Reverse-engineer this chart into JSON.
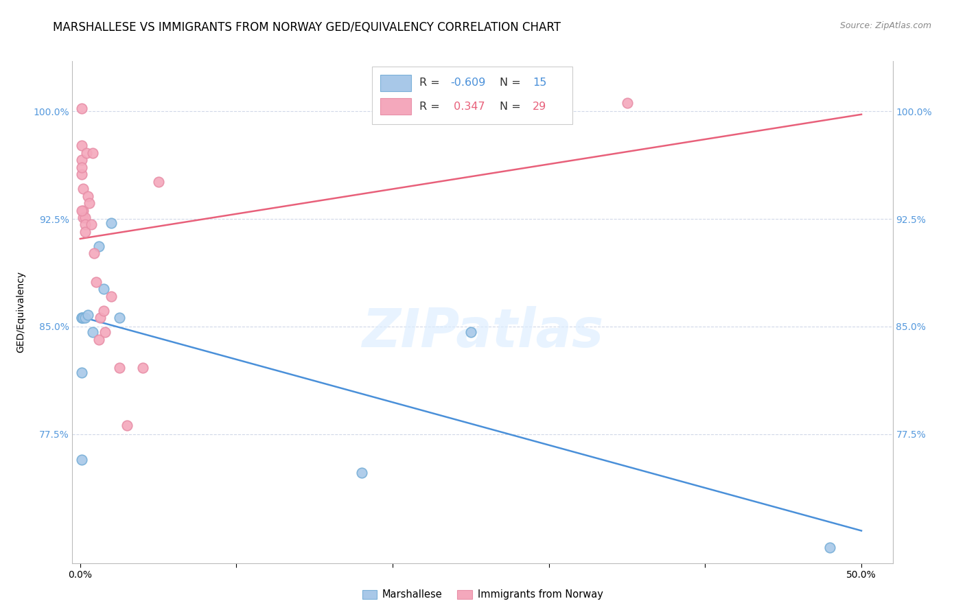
{
  "title": "MARSHALLESE VS IMMIGRANTS FROM NORWAY GED/EQUIVALENCY CORRELATION CHART",
  "source": "Source: ZipAtlas.com",
  "ylabel": "GED/Equivalency",
  "watermark": "ZIPatlas",
  "blue_label": "Marshallese",
  "pink_label": "Immigrants from Norway",
  "blue_R": -0.609,
  "blue_N": 15,
  "pink_R": 0.347,
  "pink_N": 29,
  "blue_color": "#a8c8e8",
  "pink_color": "#f4a8bc",
  "blue_line_color": "#4a90d9",
  "pink_line_color": "#e8607a",
  "blue_edge_color": "#7ab0d8",
  "pink_edge_color": "#e890a8",
  "xlim": [
    -0.005,
    0.52
  ],
  "ylim": [
    0.685,
    1.035
  ],
  "xticks": [
    0.0,
    0.1,
    0.2,
    0.3,
    0.4,
    0.5
  ],
  "xticklabels": [
    "0.0%",
    "",
    "",
    "",
    "",
    "50.0%"
  ],
  "yticks": [
    0.775,
    0.85,
    0.925,
    1.0
  ],
  "yticklabels": [
    "77.5%",
    "85.0%",
    "92.5%",
    "100.0%"
  ],
  "blue_points_x": [
    0.001,
    0.001,
    0.001,
    0.002,
    0.003,
    0.005,
    0.008,
    0.012,
    0.015,
    0.02,
    0.025,
    0.25,
    0.48,
    0.001,
    0.18
  ],
  "blue_points_y": [
    0.818,
    0.856,
    0.856,
    0.856,
    0.856,
    0.858,
    0.846,
    0.906,
    0.876,
    0.922,
    0.856,
    0.846,
    0.696,
    0.757,
    0.748
  ],
  "pink_points_x": [
    0.001,
    0.001,
    0.001,
    0.002,
    0.002,
    0.002,
    0.003,
    0.003,
    0.003,
    0.004,
    0.005,
    0.006,
    0.007,
    0.008,
    0.009,
    0.01,
    0.012,
    0.013,
    0.015,
    0.016,
    0.02,
    0.025,
    0.03,
    0.04,
    0.05,
    0.35,
    0.001,
    0.001,
    0.001
  ],
  "pink_points_y": [
    1.002,
    0.976,
    0.966,
    0.946,
    0.931,
    0.926,
    0.926,
    0.921,
    0.916,
    0.971,
    0.941,
    0.936,
    0.921,
    0.971,
    0.901,
    0.881,
    0.841,
    0.856,
    0.861,
    0.846,
    0.871,
    0.821,
    0.781,
    0.821,
    0.951,
    1.006,
    0.931,
    0.956,
    0.961
  ],
  "grid_color": "#d0d8e8",
  "title_fontsize": 12,
  "axis_label_fontsize": 10,
  "tick_fontsize": 10,
  "tick_color": "#5599dd"
}
